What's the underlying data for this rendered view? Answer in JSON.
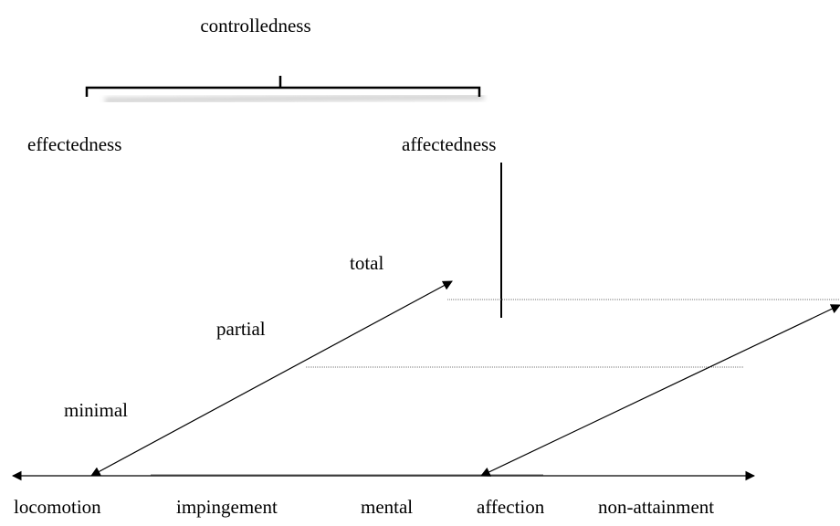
{
  "title": "controlledness",
  "branches": [
    "effectedness",
    "affectedness"
  ],
  "degrees": [
    "total",
    "partial",
    "minimal"
  ],
  "scale": [
    "locomotion",
    "impingement",
    "mental",
    "affection",
    "non-attainment"
  ]
}
